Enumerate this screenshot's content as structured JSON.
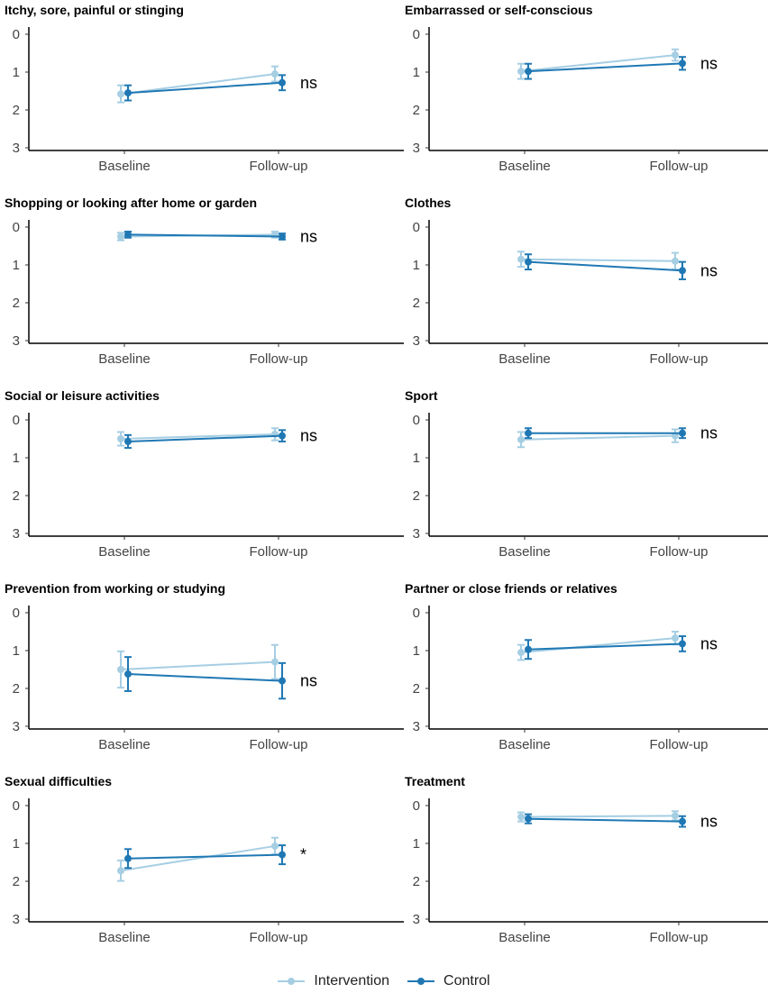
{
  "chart_data": [
    {
      "type": "line",
      "title": "Itchy, sore, painful or stinging",
      "categories": [
        "Baseline",
        "Follow-up"
      ],
      "ylim": [
        0,
        3
      ],
      "y_reversed": true,
      "yticks": [
        "0",
        "1",
        "2",
        "3"
      ],
      "series": [
        {
          "name": "Intervention",
          "values": [
            1.58,
            1.05
          ],
          "lower": [
            1.35,
            0.85
          ],
          "upper": [
            1.8,
            1.25
          ]
        },
        {
          "name": "Control",
          "values": [
            1.55,
            1.28
          ],
          "lower": [
            1.35,
            1.08
          ],
          "upper": [
            1.75,
            1.48
          ]
        }
      ],
      "annotation": "ns"
    },
    {
      "type": "line",
      "title": "Embarrassed or self-conscious",
      "categories": [
        "Baseline",
        "Follow-up"
      ],
      "ylim": [
        0,
        3
      ],
      "y_reversed": true,
      "yticks": [
        "0",
        "1",
        "2",
        "3"
      ],
      "series": [
        {
          "name": "Intervention",
          "values": [
            0.98,
            0.55
          ],
          "lower": [
            0.78,
            0.4
          ],
          "upper": [
            1.18,
            0.7
          ]
        },
        {
          "name": "Control",
          "values": [
            0.98,
            0.77
          ],
          "lower": [
            0.78,
            0.6
          ],
          "upper": [
            1.18,
            0.94
          ]
        }
      ],
      "annotation": "ns"
    },
    {
      "type": "line",
      "title": "Shopping or looking after home or garden",
      "categories": [
        "Baseline",
        "Follow-up"
      ],
      "ylim": [
        0,
        3
      ],
      "y_reversed": true,
      "yticks": [
        "0",
        "1",
        "2",
        "3"
      ],
      "series": [
        {
          "name": "Intervention",
          "values": [
            0.25,
            0.2
          ],
          "lower": [
            0.15,
            0.12
          ],
          "upper": [
            0.35,
            0.28
          ]
        },
        {
          "name": "Control",
          "values": [
            0.2,
            0.25
          ],
          "lower": [
            0.12,
            0.17
          ],
          "upper": [
            0.28,
            0.33
          ]
        }
      ],
      "annotation": "ns"
    },
    {
      "type": "line",
      "title": "Clothes",
      "categories": [
        "Baseline",
        "Follow-up"
      ],
      "ylim": [
        0,
        3
      ],
      "y_reversed": true,
      "yticks": [
        "0",
        "1",
        "2",
        "3"
      ],
      "series": [
        {
          "name": "Intervention",
          "values": [
            0.85,
            0.9
          ],
          "lower": [
            0.65,
            0.68
          ],
          "upper": [
            1.05,
            1.12
          ]
        },
        {
          "name": "Control",
          "values": [
            0.92,
            1.15
          ],
          "lower": [
            0.72,
            0.92
          ],
          "upper": [
            1.12,
            1.38
          ]
        }
      ],
      "annotation": "ns"
    },
    {
      "type": "line",
      "title": "Social or leisure activities",
      "categories": [
        "Baseline",
        "Follow-up"
      ],
      "ylim": [
        0,
        3
      ],
      "y_reversed": true,
      "yticks": [
        "0",
        "1",
        "2",
        "3"
      ],
      "series": [
        {
          "name": "Intervention",
          "values": [
            0.5,
            0.38
          ],
          "lower": [
            0.32,
            0.22
          ],
          "upper": [
            0.68,
            0.54
          ]
        },
        {
          "name": "Control",
          "values": [
            0.57,
            0.42
          ],
          "lower": [
            0.4,
            0.27
          ],
          "upper": [
            0.74,
            0.57
          ]
        }
      ],
      "annotation": "ns"
    },
    {
      "type": "line",
      "title": "Sport",
      "categories": [
        "Baseline",
        "Follow-up"
      ],
      "ylim": [
        0,
        3
      ],
      "y_reversed": true,
      "yticks": [
        "0",
        "1",
        "2",
        "3"
      ],
      "series": [
        {
          "name": "Intervention",
          "values": [
            0.52,
            0.42
          ],
          "lower": [
            0.32,
            0.25
          ],
          "upper": [
            0.72,
            0.59
          ]
        },
        {
          "name": "Control",
          "values": [
            0.35,
            0.35
          ],
          "lower": [
            0.22,
            0.22
          ],
          "upper": [
            0.48,
            0.48
          ]
        }
      ],
      "annotation": "ns"
    },
    {
      "type": "line",
      "title": "Prevention from working or studying",
      "categories": [
        "Baseline",
        "Follow-up"
      ],
      "ylim": [
        0,
        3
      ],
      "y_reversed": true,
      "yticks": [
        "0",
        "1",
        "2",
        "3"
      ],
      "series": [
        {
          "name": "Intervention",
          "values": [
            1.5,
            1.3
          ],
          "lower": [
            1.02,
            0.85
          ],
          "upper": [
            1.98,
            1.75
          ]
        },
        {
          "name": "Control",
          "values": [
            1.62,
            1.8
          ],
          "lower": [
            1.17,
            1.33
          ],
          "upper": [
            2.07,
            2.27
          ]
        }
      ],
      "annotation": "ns"
    },
    {
      "type": "line",
      "title": "Partner or close friends or relatives",
      "categories": [
        "Baseline",
        "Follow-up"
      ],
      "ylim": [
        0,
        3
      ],
      "y_reversed": true,
      "yticks": [
        "0",
        "1",
        "2",
        "3"
      ],
      "series": [
        {
          "name": "Intervention",
          "values": [
            1.05,
            0.67
          ],
          "lower": [
            0.85,
            0.5
          ],
          "upper": [
            1.25,
            0.84
          ]
        },
        {
          "name": "Control",
          "values": [
            0.97,
            0.82
          ],
          "lower": [
            0.72,
            0.62
          ],
          "upper": [
            1.22,
            1.02
          ]
        }
      ],
      "annotation": "ns"
    },
    {
      "type": "line",
      "title": "Sexual difficulties",
      "categories": [
        "Baseline",
        "Follow-up"
      ],
      "ylim": [
        0,
        3
      ],
      "y_reversed": true,
      "yticks": [
        "0",
        "1",
        "2",
        "3"
      ],
      "series": [
        {
          "name": "Intervention",
          "values": [
            1.72,
            1.07
          ],
          "lower": [
            1.45,
            0.85
          ],
          "upper": [
            1.99,
            1.29
          ]
        },
        {
          "name": "Control",
          "values": [
            1.4,
            1.3
          ],
          "lower": [
            1.15,
            1.05
          ],
          "upper": [
            1.65,
            1.55
          ]
        }
      ],
      "annotation": "*"
    },
    {
      "type": "line",
      "title": "Treatment",
      "categories": [
        "Baseline",
        "Follow-up"
      ],
      "ylim": [
        0,
        3
      ],
      "y_reversed": true,
      "yticks": [
        "0",
        "1",
        "2",
        "3"
      ],
      "series": [
        {
          "name": "Intervention",
          "values": [
            0.3,
            0.27
          ],
          "lower": [
            0.18,
            0.15
          ],
          "upper": [
            0.42,
            0.39
          ]
        },
        {
          "name": "Control",
          "values": [
            0.35,
            0.42
          ],
          "lower": [
            0.23,
            0.28
          ],
          "upper": [
            0.47,
            0.56
          ]
        }
      ],
      "annotation": "ns"
    }
  ],
  "legend": {
    "items": [
      {
        "label": "Intervention",
        "color": "#a6cee3"
      },
      {
        "label": "Control",
        "color": "#1f78b4"
      }
    ]
  }
}
